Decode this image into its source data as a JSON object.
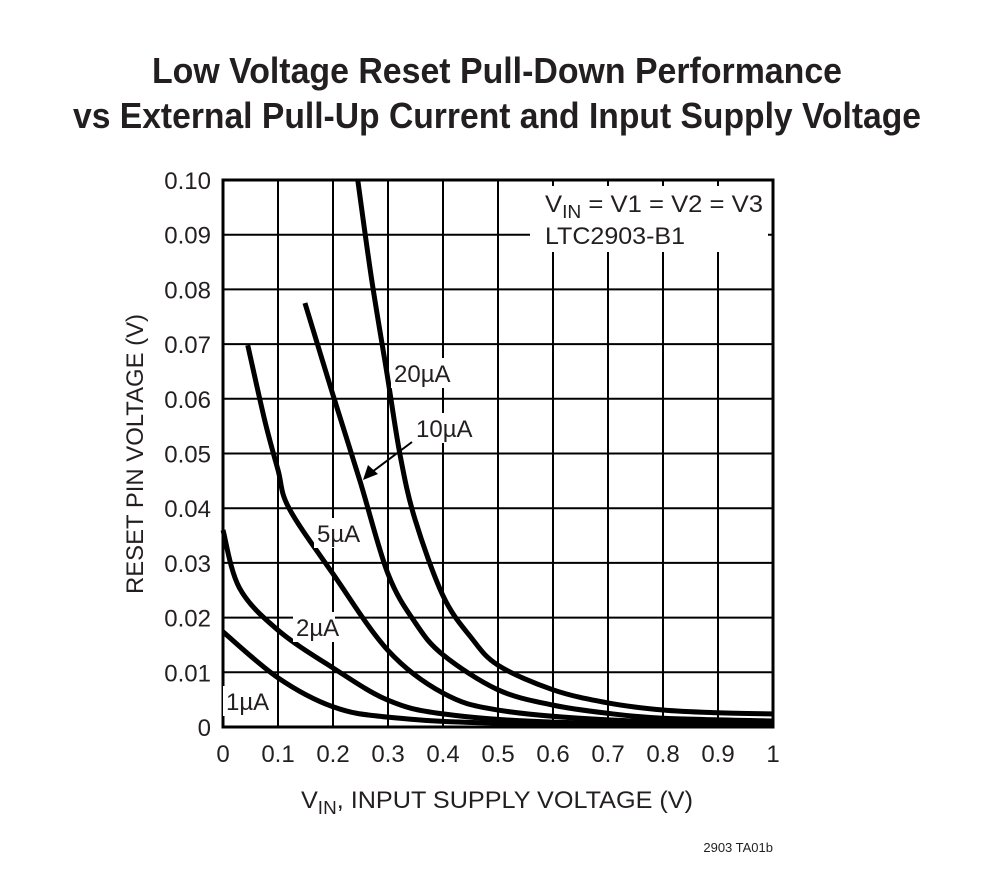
{
  "chart_data": {
    "type": "line",
    "title": "Low Voltage Reset Pull-Down Performance",
    "subtitle": "vs External Pull-Up Current and Input Supply Voltage",
    "xlabel": {
      "main": "V",
      "sub": "IN",
      "rest": ", INPUT SUPPLY VOLTAGE (V)"
    },
    "ylabel": "RESET PIN VOLTAGE (V)",
    "xlim": [
      0,
      1
    ],
    "ylim": [
      0,
      0.1
    ],
    "grid": true,
    "x_ticks": [
      "0",
      "0.1",
      "0.2",
      "0.3",
      "0.4",
      "0.5",
      "0.6",
      "0.7",
      "0.8",
      "0.9",
      "1"
    ],
    "y_ticks": [
      "0",
      "0.01",
      "0.02",
      "0.03",
      "0.04",
      "0.05",
      "0.06",
      "0.07",
      "0.08",
      "0.09",
      "0.10"
    ],
    "annotation": {
      "line1_main": "V",
      "line1_sub": "IN",
      "line1_rest": " = V1 = V2 = V3",
      "line2": "LTC2903-B1"
    },
    "footnote": "2903 TA01b",
    "line_color": "#000000",
    "series": [
      {
        "name": "20µA",
        "x": [
          0.245,
          0.27,
          0.298,
          0.322,
          0.349,
          0.4,
          0.45,
          0.5,
          0.6,
          0.7,
          0.8,
          0.9,
          1.0
        ],
        "y": [
          0.1,
          0.082,
          0.0647,
          0.0497,
          0.038,
          0.024,
          0.0165,
          0.0113,
          0.0068,
          0.0044,
          0.0031,
          0.0026,
          0.0024
        ]
      },
      {
        "name": "10µA",
        "x": [
          0.149,
          0.2,
          0.249,
          0.3,
          0.35,
          0.4,
          0.5,
          0.6,
          0.7,
          0.8,
          1.0
        ],
        "y": [
          0.0775,
          0.0607,
          0.045,
          0.028,
          0.019,
          0.0132,
          0.0068,
          0.004,
          0.0025,
          0.0016,
          0.0011
        ]
      },
      {
        "name": "5µA",
        "x": [
          0.045,
          0.076,
          0.1,
          0.12,
          0.2,
          0.3,
          0.4,
          0.5,
          0.7,
          1.0
        ],
        "y": [
          0.0698,
          0.056,
          0.047,
          0.04,
          0.028,
          0.014,
          0.0062,
          0.0031,
          0.0013,
          0.0005
        ]
      },
      {
        "name": "2µA",
        "x": [
          0.0,
          0.03,
          0.1,
          0.2,
          0.3,
          0.4,
          0.6,
          1.0
        ],
        "y": [
          0.036,
          0.0254,
          0.0177,
          0.0108,
          0.0049,
          0.0024,
          0.0009,
          0.0004
        ]
      },
      {
        "name": "1µA",
        "x": [
          0.0,
          0.1,
          0.2,
          0.3,
          0.5,
          1.0
        ],
        "y": [
          0.0174,
          0.009,
          0.0037,
          0.0018,
          0.0007,
          0.0002
        ]
      }
    ]
  }
}
